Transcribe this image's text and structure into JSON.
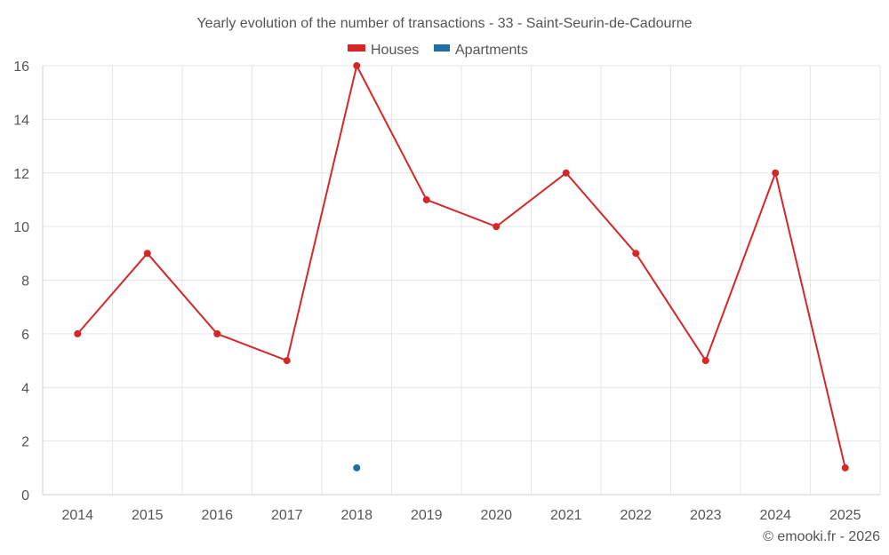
{
  "chart_data": {
    "type": "line",
    "title": "Yearly evolution of the number of transactions - 33 - Saint-Seurin-de-Cadourne",
    "categories": [
      "2014",
      "2015",
      "2016",
      "2017",
      "2018",
      "2019",
      "2020",
      "2021",
      "2022",
      "2023",
      "2024",
      "2025"
    ],
    "series": [
      {
        "name": "Houses",
        "color": "#d62728",
        "values": [
          6,
          9,
          6,
          5,
          16,
          11,
          10,
          12,
          9,
          5,
          12,
          1
        ]
      },
      {
        "name": "Apartments",
        "color": "#1f6fa5",
        "values": [
          null,
          null,
          null,
          null,
          1,
          null,
          null,
          null,
          null,
          null,
          null,
          null
        ]
      }
    ],
    "yticks": [
      0,
      2,
      4,
      6,
      8,
      10,
      12,
      14,
      16
    ],
    "ylim": [
      0,
      16
    ],
    "xlabel": "",
    "ylabel": "",
    "grid": true,
    "legend_position": "top-center"
  },
  "footer": {
    "credit": "© emooki.fr - 2026"
  }
}
